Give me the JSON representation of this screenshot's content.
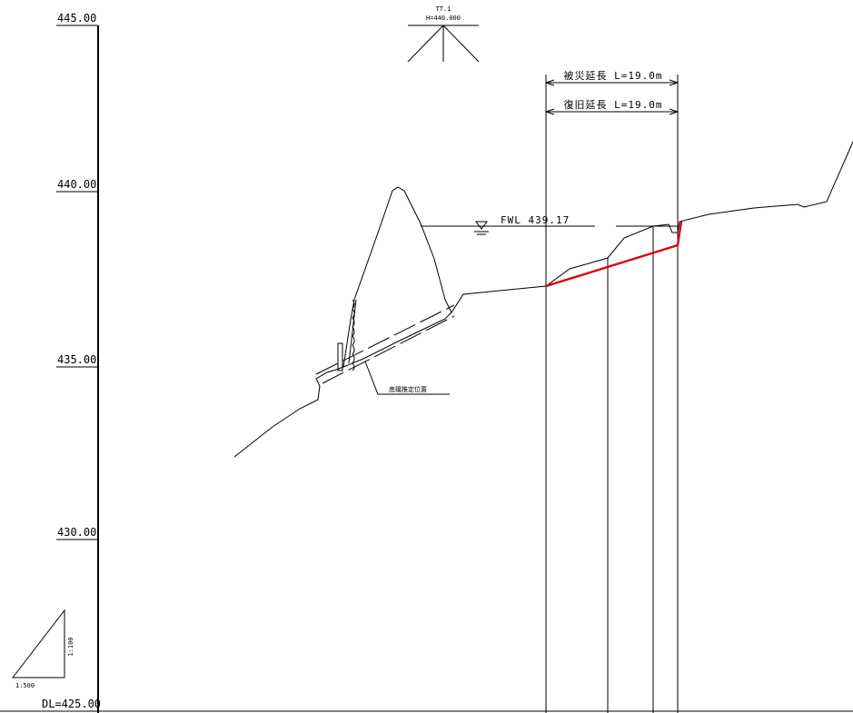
{
  "elevation_axis": {
    "ticks": [
      "445.00",
      "440.00",
      "435.00",
      "430.00"
    ],
    "datum_label": "DL=425.00"
  },
  "benchmark": {
    "name": "TT.1",
    "height": "H=440.000"
  },
  "dimensions": {
    "damage_length": "被災延長 L=19.0m",
    "restoration_length": "復旧延長 L=19.0m"
  },
  "water_level": {
    "label": "FWL 439.17"
  },
  "annotations": {
    "foundation": "底磯推定位置"
  },
  "scale": {
    "vertical": "1:100",
    "horizontal": "1:500"
  },
  "colors": {
    "restoration_line": "#e00000"
  }
}
